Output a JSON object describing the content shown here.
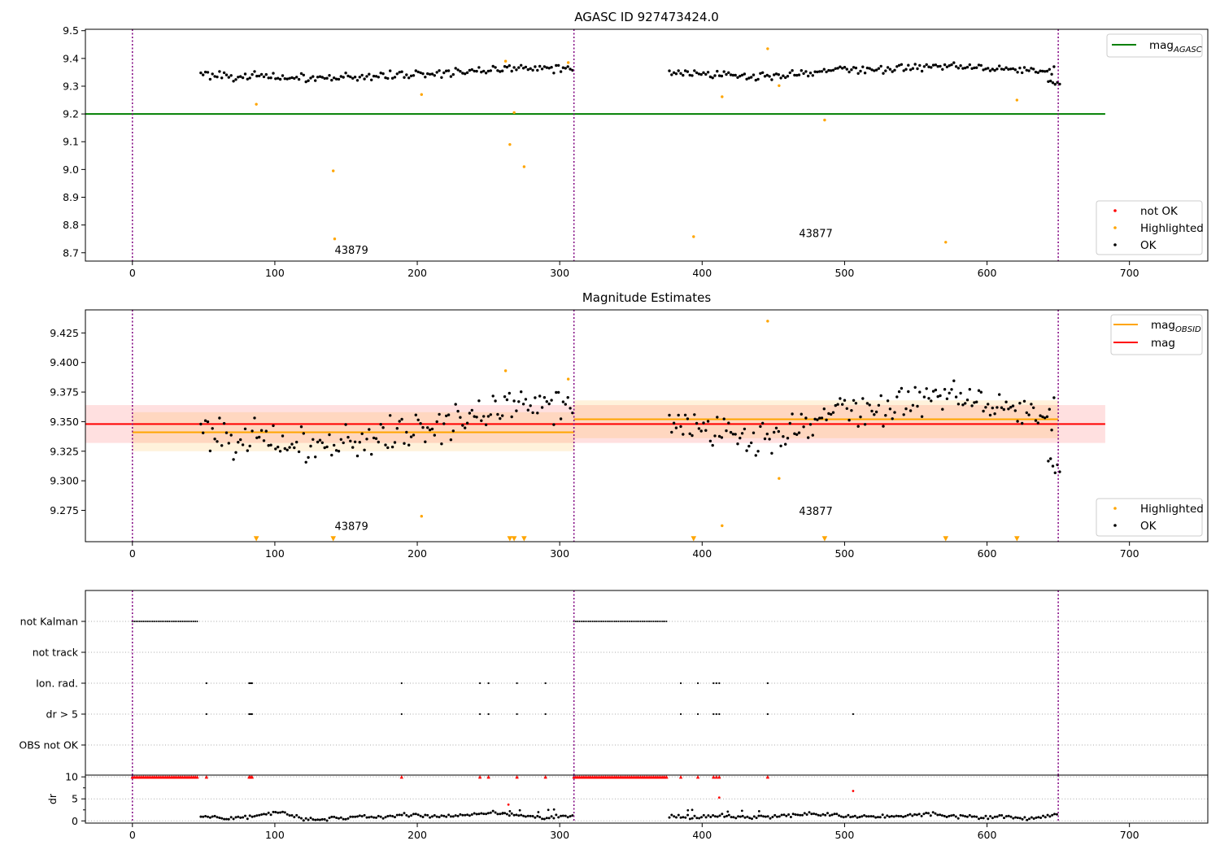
{
  "figure": {
    "agasc_id": "AGASC ID 927473424.0",
    "subtitle": "Magnitude Estimates"
  },
  "chart_data": [
    {
      "id": "top",
      "type": "scatter",
      "title": "AGASC ID 927473424.0",
      "xlim": [
        -33,
        755
      ],
      "ylim": [
        8.67,
        9.505
      ],
      "xticks": [
        0,
        100,
        200,
        300,
        400,
        500,
        600,
        700
      ],
      "yticks": [
        8.7,
        8.8,
        8.9,
        9.0,
        9.1,
        9.2,
        9.3,
        9.4,
        9.5
      ],
      "obs_boundaries": [
        0,
        310,
        650
      ],
      "reference_lines": [
        {
          "name": "mag_AGASC",
          "y": 9.2,
          "x_range": [
            -33,
            683
          ],
          "color": "#008000"
        }
      ],
      "ok_series": {
        "name": "OK",
        "color": "#000000",
        "segments": [
          {
            "x_from": 48,
            "x_to": 309,
            "n": 160,
            "center": [
              9.345,
              9.335,
              9.33,
              9.33,
              9.34,
              9.345,
              9.355,
              9.37,
              9.36
            ],
            "jitter": 0.012
          },
          {
            "x_from": 377,
            "x_to": 647,
            "n": 170,
            "center": [
              9.35,
              9.34,
              9.335,
              9.345,
              9.36,
              9.36,
              9.37,
              9.375,
              9.36,
              9.355
            ],
            "jitter": 0.011
          },
          {
            "x_from": 643,
            "x_to": 651,
            "n": 6,
            "center": [
              9.32,
              9.31
            ],
            "jitter": 0.006
          }
        ]
      },
      "highlighted": {
        "name": "Highlighted",
        "color": "#ffa500",
        "x": [
          87,
          141,
          142,
          203,
          262,
          265,
          268,
          275,
          306,
          394,
          414,
          446,
          454,
          486,
          571,
          621
        ],
        "y": [
          9.235,
          8.995,
          8.75,
          9.27,
          9.39,
          9.09,
          9.205,
          9.01,
          9.385,
          8.758,
          9.262,
          9.435,
          9.302,
          9.178,
          8.738,
          9.25
        ]
      },
      "not_ok": {
        "name": "not OK",
        "color": "#ff0000",
        "x": [],
        "y": []
      },
      "annotations": [
        {
          "text": "43879",
          "x": 142,
          "y": 8.7
        },
        {
          "text": "43877",
          "x": 468,
          "y": 8.76
        }
      ],
      "legends": [
        {
          "position": "upper-right",
          "entries": [
            {
              "label": "mag",
              "sub": "AGASC",
              "kind": "line",
              "color": "#008000"
            }
          ]
        },
        {
          "position": "lower-right",
          "entries": [
            {
              "label": "not OK",
              "kind": "dot",
              "color": "#ff0000"
            },
            {
              "label": "Highlighted",
              "kind": "dot",
              "color": "#ffa500"
            },
            {
              "label": "OK",
              "kind": "dot",
              "color": "#000000"
            }
          ]
        }
      ]
    },
    {
      "id": "middle",
      "type": "scatter",
      "title": "Magnitude Estimates",
      "xlim": [
        -33,
        755
      ],
      "ylim": [
        9.2485,
        9.4445
      ],
      "xticks": [
        0,
        100,
        200,
        300,
        400,
        500,
        600,
        700
      ],
      "yticks": [
        9.275,
        9.3,
        9.325,
        9.35,
        9.375,
        9.4,
        9.425
      ],
      "obs_boundaries": [
        0,
        310,
        650
      ],
      "bands": [
        {
          "x_range": [
            -33,
            683
          ],
          "y_range": [
            9.332,
            9.364
          ],
          "color": "#ff0000",
          "opacity": 0.12
        },
        {
          "x_range": [
            0,
            310
          ],
          "y_range": [
            9.325,
            9.358
          ],
          "color": "#ffa500",
          "opacity": 0.14
        },
        {
          "x_range": [
            310,
            650
          ],
          "y_range": [
            9.336,
            9.368
          ],
          "color": "#ffa500",
          "opacity": 0.14
        }
      ],
      "mag_lines": [
        {
          "name": "mag_OBSID",
          "color": "#ffa500",
          "segments": [
            {
              "x": [
                0,
                310
              ],
              "y": 9.341
            },
            {
              "x": [
                310,
                650
              ],
              "y": 9.352
            }
          ]
        },
        {
          "name": "mag",
          "color": "#ff0000",
          "segments": [
            {
              "x": [
                -33,
                683
              ],
              "y": 9.348
            }
          ]
        }
      ],
      "ok_series": {
        "name": "OK",
        "color": "#000000",
        "segments": [
          {
            "x_from": 48,
            "x_to": 309,
            "n": 160,
            "center": [
              9.345,
              9.335,
              9.33,
              9.33,
              9.34,
              9.345,
              9.355,
              9.37,
              9.36
            ],
            "jitter": 0.012
          },
          {
            "x_from": 377,
            "x_to": 647,
            "n": 170,
            "center": [
              9.35,
              9.34,
              9.335,
              9.345,
              9.36,
              9.36,
              9.37,
              9.375,
              9.36,
              9.355
            ],
            "jitter": 0.011
          },
          {
            "x_from": 643,
            "x_to": 651,
            "n": 6,
            "center": [
              9.32,
              9.31
            ],
            "jitter": 0.006
          }
        ]
      },
      "highlighted": {
        "name": "Highlighted",
        "color": "#ffa500",
        "x": [
          203,
          262,
          306,
          414,
          446,
          454
        ],
        "y": [
          9.27,
          9.393,
          9.386,
          9.262,
          9.435,
          9.302
        ]
      },
      "below_range_markers": {
        "color": "#ffa500",
        "x": [
          87,
          141,
          265,
          268,
          275,
          394,
          486,
          571,
          621
        ]
      },
      "annotations": [
        {
          "text": "43879",
          "x": 142,
          "y": 9.259
        },
        {
          "text": "43877",
          "x": 468,
          "y": 9.272
        }
      ],
      "legends": [
        {
          "position": "upper-right",
          "entries": [
            {
              "label": "mag",
              "sub": "OBSID",
              "kind": "line",
              "color": "#ffa500"
            },
            {
              "label": "mag",
              "kind": "line",
              "color": "#ff0000"
            }
          ]
        },
        {
          "position": "lower-right",
          "entries": [
            {
              "label": "Highlighted",
              "kind": "dot",
              "color": "#ffa500"
            },
            {
              "label": "OK",
              "kind": "dot",
              "color": "#000000"
            }
          ]
        }
      ]
    },
    {
      "id": "flags",
      "type": "scatter",
      "xlim": [
        -33,
        755
      ],
      "categories": [
        "not Kalman",
        "not track",
        "Ion. rad.",
        "dr > 5",
        "OBS not OK"
      ],
      "flag_runs": [
        {
          "category": "not Kalman",
          "x_from": 0,
          "x_to": 46
        },
        {
          "category": "not Kalman",
          "x_from": 310,
          "x_to": 376
        }
      ],
      "flag_points": [
        {
          "category": "Ion. rad.",
          "x": [
            52,
            82,
            83,
            84,
            189,
            244,
            250,
            270,
            290,
            385,
            397,
            408,
            410,
            412,
            446
          ]
        },
        {
          "category": "dr > 5",
          "x": [
            52,
            82,
            83,
            84,
            189,
            244,
            250,
            270,
            290,
            385,
            397,
            408,
            410,
            412,
            446,
            506
          ]
        }
      ],
      "obs_boundaries": [
        0,
        310,
        650
      ]
    },
    {
      "id": "dr",
      "type": "scatter",
      "ylabel": "dr",
      "xlim": [
        -33,
        755
      ],
      "ylim": [
        -0.5,
        10.4
      ],
      "xticks": [
        0,
        100,
        200,
        300,
        400,
        500,
        600,
        700
      ],
      "yticks": [
        0,
        5,
        10
      ],
      "obs_boundaries": [
        0,
        310,
        650
      ],
      "capped_runs": [
        {
          "x_from": 0,
          "x_to": 46,
          "y": 10
        },
        {
          "x_from": 310,
          "x_to": 376,
          "y": 10
        }
      ],
      "capped_points": {
        "y": 10,
        "x": [
          52,
          82,
          83,
          84,
          189,
          244,
          250,
          270,
          290,
          385,
          397,
          408,
          410,
          412,
          446
        ]
      },
      "red_points": {
        "x": [
          264,
          412,
          506
        ],
        "y": [
          3.7,
          5.3,
          6.8
        ]
      },
      "dr_series": {
        "segments": [
          {
            "x_from": 48,
            "x_to": 309,
            "n": 160,
            "center": [
              1.0,
              0.7,
              1.0,
              2.0,
              0.3,
              0.5,
              0.9,
              1.0,
              1.5,
              0.9,
              1.4,
              2.0,
              1.3,
              0.6,
              1.4
            ],
            "jitter": 0.3
          },
          {
            "x_from": 377,
            "x_to": 649,
            "n": 170,
            "center": [
              1.0,
              0.7,
              1.2,
              0.7,
              1.0,
              1.4,
              1.6,
              0.8,
              1.2,
              1.0,
              1.6,
              1.0,
              0.8,
              1.0,
              0.5,
              1.4
            ],
            "jitter": 0.3
          }
        ]
      },
      "extra_points": {
        "x": [
          260,
          265,
          272,
          285,
          292,
          296,
          390,
          393,
          418,
          428,
          440
        ],
        "y": [
          1.8,
          2.2,
          2.4,
          2.0,
          2.5,
          2.6,
          2.4,
          2.5,
          2.1,
          2.3,
          2.2
        ]
      }
    }
  ]
}
